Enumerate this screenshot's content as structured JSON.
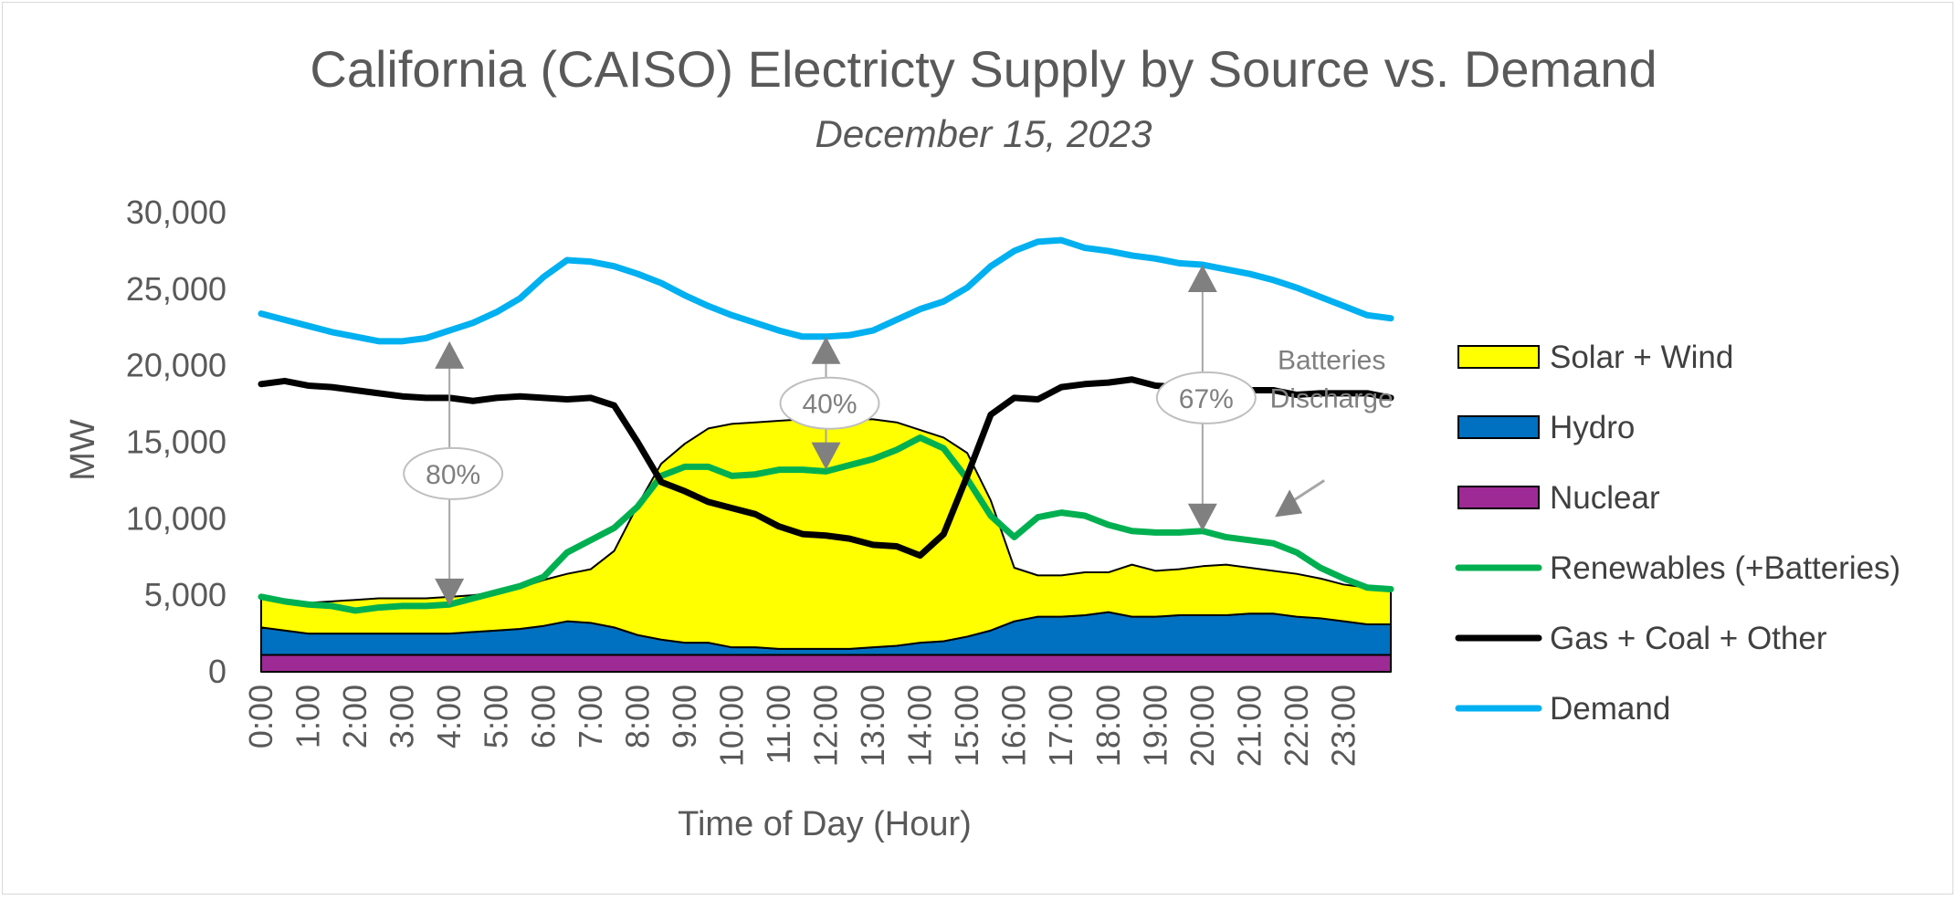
{
  "chart_data": {
    "type": "area",
    "title": "California (CAISO) Electricty Supply by Source vs. Demand",
    "subtitle": "December 15, 2023",
    "xlabel": "Time of Day (Hour)",
    "ylabel": "MW",
    "ylim": [
      0,
      30000
    ],
    "yticks": [
      0,
      5000,
      10000,
      15000,
      20000,
      25000,
      30000
    ],
    "ytick_labels": [
      "0",
      "5,000",
      "10,000",
      "15,000",
      "20,000",
      "25,000",
      "30,000"
    ],
    "xlim": [
      0,
      24
    ],
    "categories": [
      "0:00",
      "1:00",
      "2:00",
      "3:00",
      "4:00",
      "5:00",
      "6:00",
      "7:00",
      "8:00",
      "9:00",
      "10:00",
      "11:00",
      "12:00",
      "13:00",
      "14:00",
      "15:00",
      "16:00",
      "17:00",
      "18:00",
      "19:00",
      "20:00",
      "21:00",
      "22:00",
      "23:00"
    ],
    "x": [
      0,
      0.5,
      1,
      1.5,
      2,
      2.5,
      3,
      3.5,
      4,
      4.5,
      5,
      5.5,
      6,
      6.5,
      7,
      7.5,
      8,
      8.5,
      9,
      9.5,
      10,
      10.5,
      11,
      11.5,
      12,
      12.5,
      13,
      13.5,
      14,
      14.5,
      15,
      15.5,
      16,
      16.5,
      17,
      17.5,
      18,
      18.5,
      19,
      19.5,
      20,
      20.5,
      21,
      21.5,
      22,
      22.5,
      23,
      23.5,
      24
    ],
    "series": [
      {
        "name": "Nuclear",
        "kind": "area",
        "color": "#9e2a95",
        "values": [
          1100,
          1100,
          1100,
          1100,
          1100,
          1100,
          1100,
          1100,
          1100,
          1100,
          1100,
          1100,
          1100,
          1100,
          1100,
          1100,
          1100,
          1100,
          1100,
          1100,
          1100,
          1100,
          1100,
          1100,
          1100,
          1100,
          1100,
          1100,
          1100,
          1100,
          1100,
          1100,
          1100,
          1100,
          1100,
          1100,
          1100,
          1100,
          1100,
          1100,
          1100,
          1100,
          1100,
          1100,
          1100,
          1100,
          1100,
          1100,
          1100
        ]
      },
      {
        "name": "Hydro",
        "kind": "area",
        "color": "#0070c0",
        "values": [
          1800,
          1600,
          1400,
          1400,
          1400,
          1400,
          1400,
          1400,
          1400,
          1500,
          1600,
          1700,
          1900,
          2200,
          2100,
          1800,
          1300,
          1000,
          800,
          800,
          500,
          500,
          400,
          400,
          400,
          400,
          500,
          600,
          800,
          900,
          1200,
          1600,
          2200,
          2500,
          2500,
          2600,
          2800,
          2500,
          2500,
          2600,
          2600,
          2600,
          2700,
          2700,
          2500,
          2400,
          2200,
          2000,
          2000
        ]
      },
      {
        "name": "Solar + Wind",
        "kind": "area",
        "color": "#ffff00",
        "values": [
          2100,
          1900,
          2000,
          2100,
          2200,
          2300,
          2300,
          2300,
          2400,
          2400,
          2500,
          2700,
          3000,
          3100,
          3500,
          5000,
          8500,
          11500,
          13000,
          14000,
          14600,
          14700,
          14900,
          15000,
          15000,
          15000,
          14900,
          14600,
          13900,
          13300,
          12000,
          8500,
          3500,
          2700,
          2700,
          2800,
          2600,
          3400,
          3000,
          3000,
          3200,
          3300,
          3000,
          2800,
          2800,
          2600,
          2400,
          2400,
          2400
        ]
      },
      {
        "name": "Renewables (+Batteries)",
        "kind": "line",
        "color": "#00b050",
        "values": [
          4900,
          4600,
          4400,
          4300,
          4000,
          4200,
          4300,
          4300,
          4400,
          4800,
          5200,
          5600,
          6200,
          7800,
          8600,
          9400,
          10800,
          12800,
          13400,
          13400,
          12800,
          12900,
          13200,
          13200,
          13100,
          13500,
          13900,
          14500,
          15300,
          14600,
          12600,
          10200,
          8800,
          10100,
          10400,
          10200,
          9600,
          9200,
          9100,
          9100,
          9200,
          8800,
          8600,
          8400,
          7800,
          6800,
          6100,
          5500,
          5400
        ]
      },
      {
        "name": "Gas + Coal + Other",
        "kind": "line",
        "color": "#000000",
        "values": [
          18800,
          19000,
          18700,
          18600,
          18400,
          18200,
          18000,
          17900,
          17900,
          17700,
          17900,
          18000,
          17900,
          17800,
          17900,
          17400,
          15000,
          12400,
          11800,
          11100,
          10700,
          10300,
          9500,
          9000,
          8900,
          8700,
          8300,
          8200,
          7600,
          9000,
          12800,
          16800,
          17900,
          17800,
          18600,
          18800,
          18900,
          19100,
          18700,
          18600,
          18500,
          18300,
          18400,
          18400,
          18100,
          18200,
          18200,
          18200,
          17900
        ]
      },
      {
        "name": "Demand",
        "kind": "line",
        "color": "#00b0f0",
        "values": [
          23400,
          23000,
          22600,
          22200,
          21900,
          21600,
          21600,
          21800,
          22300,
          22800,
          23500,
          24400,
          25800,
          26900,
          26800,
          26500,
          26000,
          25400,
          24600,
          23900,
          23300,
          22800,
          22300,
          21900,
          21900,
          22000,
          22300,
          23000,
          23700,
          24200,
          25100,
          26500,
          27500,
          28100,
          28200,
          27700,
          27500,
          27200,
          27000,
          26700,
          26600,
          26300,
          26000,
          25600,
          25100,
          24500,
          23900,
          23300,
          23100
        ]
      }
    ],
    "legend_order": [
      "Solar + Wind",
      "Hydro",
      "Nuclear",
      "Renewables (+Batteries)",
      "Gas + Coal + Other",
      "Demand"
    ],
    "legend_position": "right",
    "annotations": [
      {
        "text": "80%",
        "x": 4,
        "y_from": 4300,
        "y_to": 21600
      },
      {
        "text": "40%",
        "x": 12,
        "y_from": 13200,
        "y_to": 21900
      },
      {
        "text": "67%",
        "x": 20,
        "y_from": 9200,
        "y_to": 26600
      },
      {
        "text": "Batteries Discharge",
        "lines": [
          "Batteries",
          "Discharge"
        ],
        "x": 21.5,
        "y": 10000
      }
    ]
  }
}
